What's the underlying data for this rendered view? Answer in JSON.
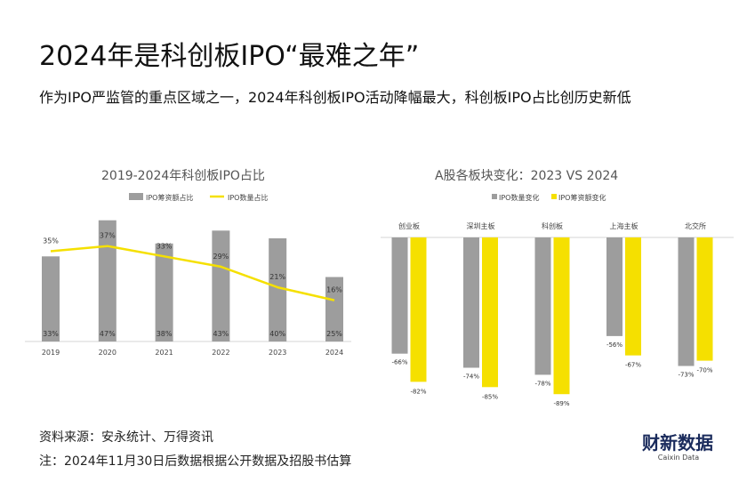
{
  "title": "2024年是科创板IPO“最难之年”",
  "subtitle": "作为IPO严监管的重点区域之一，2024年科创板IPO活动降幅最大，科创板IPO占比创历史新低",
  "chart_data": [
    {
      "type": "bar",
      "title": "2019-2024年科创板IPO占比",
      "categories": [
        "2019",
        "2020",
        "2021",
        "2022",
        "2023",
        "2024"
      ],
      "series": [
        {
          "name": "IPO筹资额占比",
          "type": "bar",
          "values": [
            33,
            47,
            38,
            43,
            40,
            25
          ],
          "labels": [
            "33%",
            "47%",
            "38%",
            "43%",
            "40%",
            "25%"
          ]
        },
        {
          "name": "IPO数量占比",
          "type": "line",
          "values": [
            35,
            37,
            33,
            29,
            21,
            16
          ],
          "labels": [
            "35%",
            "37%",
            "33%",
            "29%",
            "21%",
            "16%"
          ]
        }
      ],
      "legend": "top",
      "grid": false,
      "colors": {
        "bar": "#9d9d9d",
        "line": "#f5e000"
      }
    },
    {
      "type": "bar",
      "title": "A股各板块变化：2023 VS 2024",
      "categories": [
        "创业板",
        "深圳主板",
        "科创板",
        "上海主板",
        "北交所"
      ],
      "series": [
        {
          "name": "IPO数量变化",
          "values": [
            -66,
            -74,
            -78,
            -56,
            -73
          ],
          "labels": [
            "-66%",
            "-74%",
            "-78%",
            "-56%",
            "-73%"
          ]
        },
        {
          "name": "IPO筹资额变化",
          "values": [
            -82,
            -85,
            -89,
            -67,
            -70
          ],
          "labels": [
            "-82%",
            "-85%",
            "-89%",
            "-67%",
            "-70%"
          ]
        }
      ],
      "legend": "top",
      "grid": false,
      "colors": {
        "count": "#9d9d9d",
        "amount": "#f5e000"
      }
    }
  ],
  "footer": {
    "source": "资料来源：安永统计、万得资讯",
    "note": "注：2024年11月30日后数据根据公开数据及招股书估算"
  },
  "logo": {
    "main": "财新数据",
    "sub": "Caixin Data"
  }
}
